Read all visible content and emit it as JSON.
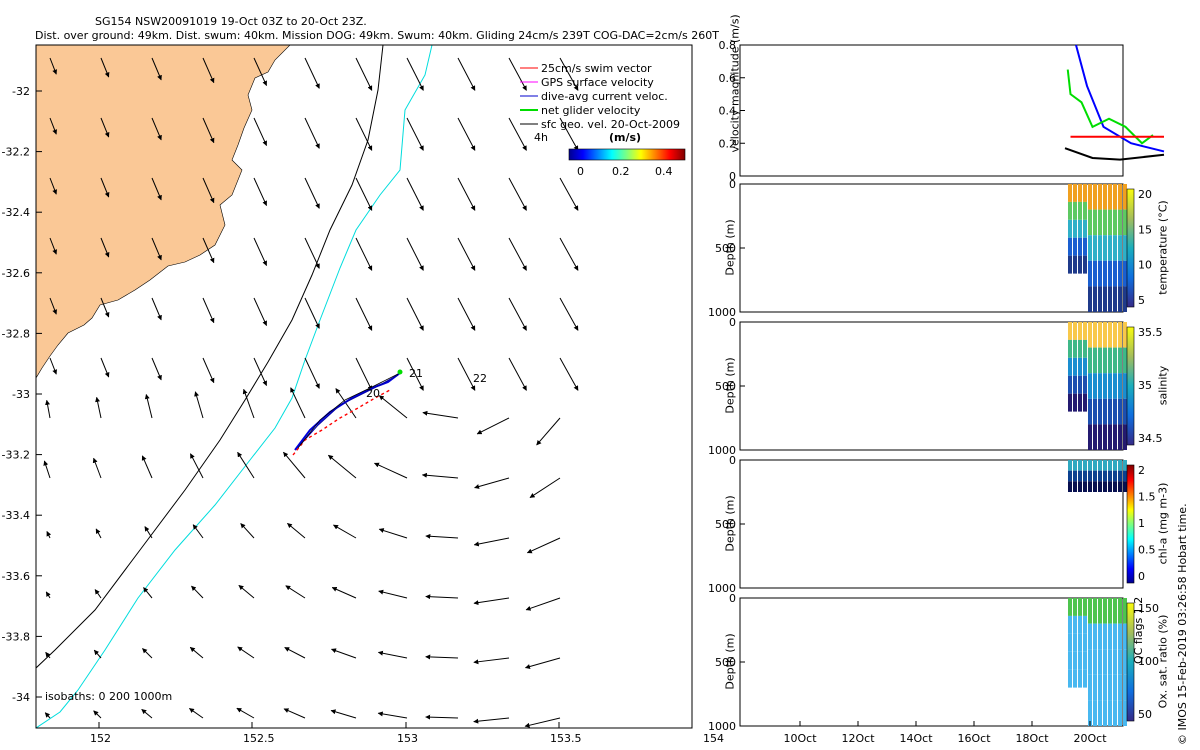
{
  "header": {
    "line1": "SG154 NSW20091019 19-Oct 03Z to 20-Oct 23Z.",
    "line2": "Dist. over ground: 49km. Dist. swum: 40km. Mission DOG: 49km. Swum: 40km. Gliding 24cm/s 239T COG-DAC=2cm/s 260T"
  },
  "map": {
    "xticks": [
      "152",
      "152.5",
      "153",
      "153.5",
      "154"
    ],
    "yticks": [
      "-32",
      "-32.2",
      "-32.4",
      "-32.6",
      "-32.8",
      "-33",
      "-33.2",
      "-33.4",
      "-33.6",
      "-33.8",
      "-34"
    ],
    "isobaths_text": "isobaths: 0   200  1000m",
    "time_labels": {
      "h4": "4h",
      "d20": "20",
      "d21": "21",
      "d22": "22"
    },
    "legend": [
      {
        "label": "25cm/s swim vector",
        "color": "#ff0000"
      },
      {
        "label": "GPS surface velocity",
        "color": "#ff00ff"
      },
      {
        "label": "dive-avg current veloc.",
        "color": "#0000cc"
      },
      {
        "label": "net glider velocity",
        "color": "#00dd00"
      },
      {
        "label": "sfc geo. vel. 20-Oct-2009",
        "color": "#000000"
      }
    ],
    "colorbar": {
      "unit": "(m/s)",
      "ticks": [
        "0",
        "0.2",
        "0.4"
      ]
    },
    "colors": {
      "land": "#fac896",
      "isobath200": "#00dddd",
      "isobath1000": "#000000"
    }
  },
  "chart_data": [
    {
      "type": "line",
      "ylabel": "velocity magnitude (m/s)",
      "yticks": [
        "0",
        "0.2",
        "0.4",
        "0.6",
        "0.8"
      ],
      "ylim": [
        0,
        0.8
      ],
      "series": [
        {
          "color": "#0000ff",
          "x": [
            19.2,
            19.4,
            19.7,
            20.2,
            20.8
          ],
          "y": [
            0.8,
            0.55,
            0.3,
            0.2,
            0.15
          ]
        },
        {
          "color": "#00dd00",
          "x": [
            19.05,
            19.1,
            19.3,
            19.5,
            19.8,
            20.1,
            20.4,
            20.6
          ],
          "y": [
            0.65,
            0.5,
            0.45,
            0.3,
            0.35,
            0.3,
            0.2,
            0.25
          ]
        },
        {
          "color": "#ff0000",
          "x": [
            19.1,
            20.8
          ],
          "y": [
            0.24,
            0.24
          ]
        },
        {
          "color": "#000000",
          "x": [
            19.0,
            19.5,
            20.0,
            20.8
          ],
          "y": [
            0.17,
            0.11,
            0.1,
            0.13
          ]
        }
      ]
    },
    {
      "type": "scatter",
      "ylabel": "Depth (m)",
      "cbar_label": "temperature (°C)",
      "cbar_ticks": [
        "5",
        "10",
        "15",
        "20"
      ],
      "ylim": [
        1000,
        0
      ]
    },
    {
      "type": "scatter",
      "ylabel": "Depth (m)",
      "cbar_label": "salinity",
      "cbar_ticks": [
        "34.5",
        "35",
        "35.5"
      ],
      "ylim": [
        1000,
        0
      ]
    },
    {
      "type": "scatter",
      "ylabel": "Depth (m)",
      "cbar_label": "chl-a (mg m-3)",
      "cbar_ticks": [
        "0",
        "0.5",
        "1",
        "1.5",
        "2"
      ],
      "ylim": [
        1000,
        0
      ]
    },
    {
      "type": "scatter",
      "ylabel": "Depth (m)",
      "cbar_label": "Ox. sat. ratio (%)",
      "cbar_ticks": [
        "50",
        "100",
        "150"
      ],
      "ylim": [
        1000,
        0
      ]
    }
  ],
  "side": {
    "depth_ticks": [
      "0",
      "500",
      "1000"
    ],
    "time_ticks": [
      "10Oct",
      "12Oct",
      "14Oct",
      "16Oct",
      "18Oct",
      "20Oct"
    ],
    "qc_note": "QC flags 1  2",
    "credit": "© IMOS 15-Feb-2019 03:26:58 Hobart time."
  }
}
